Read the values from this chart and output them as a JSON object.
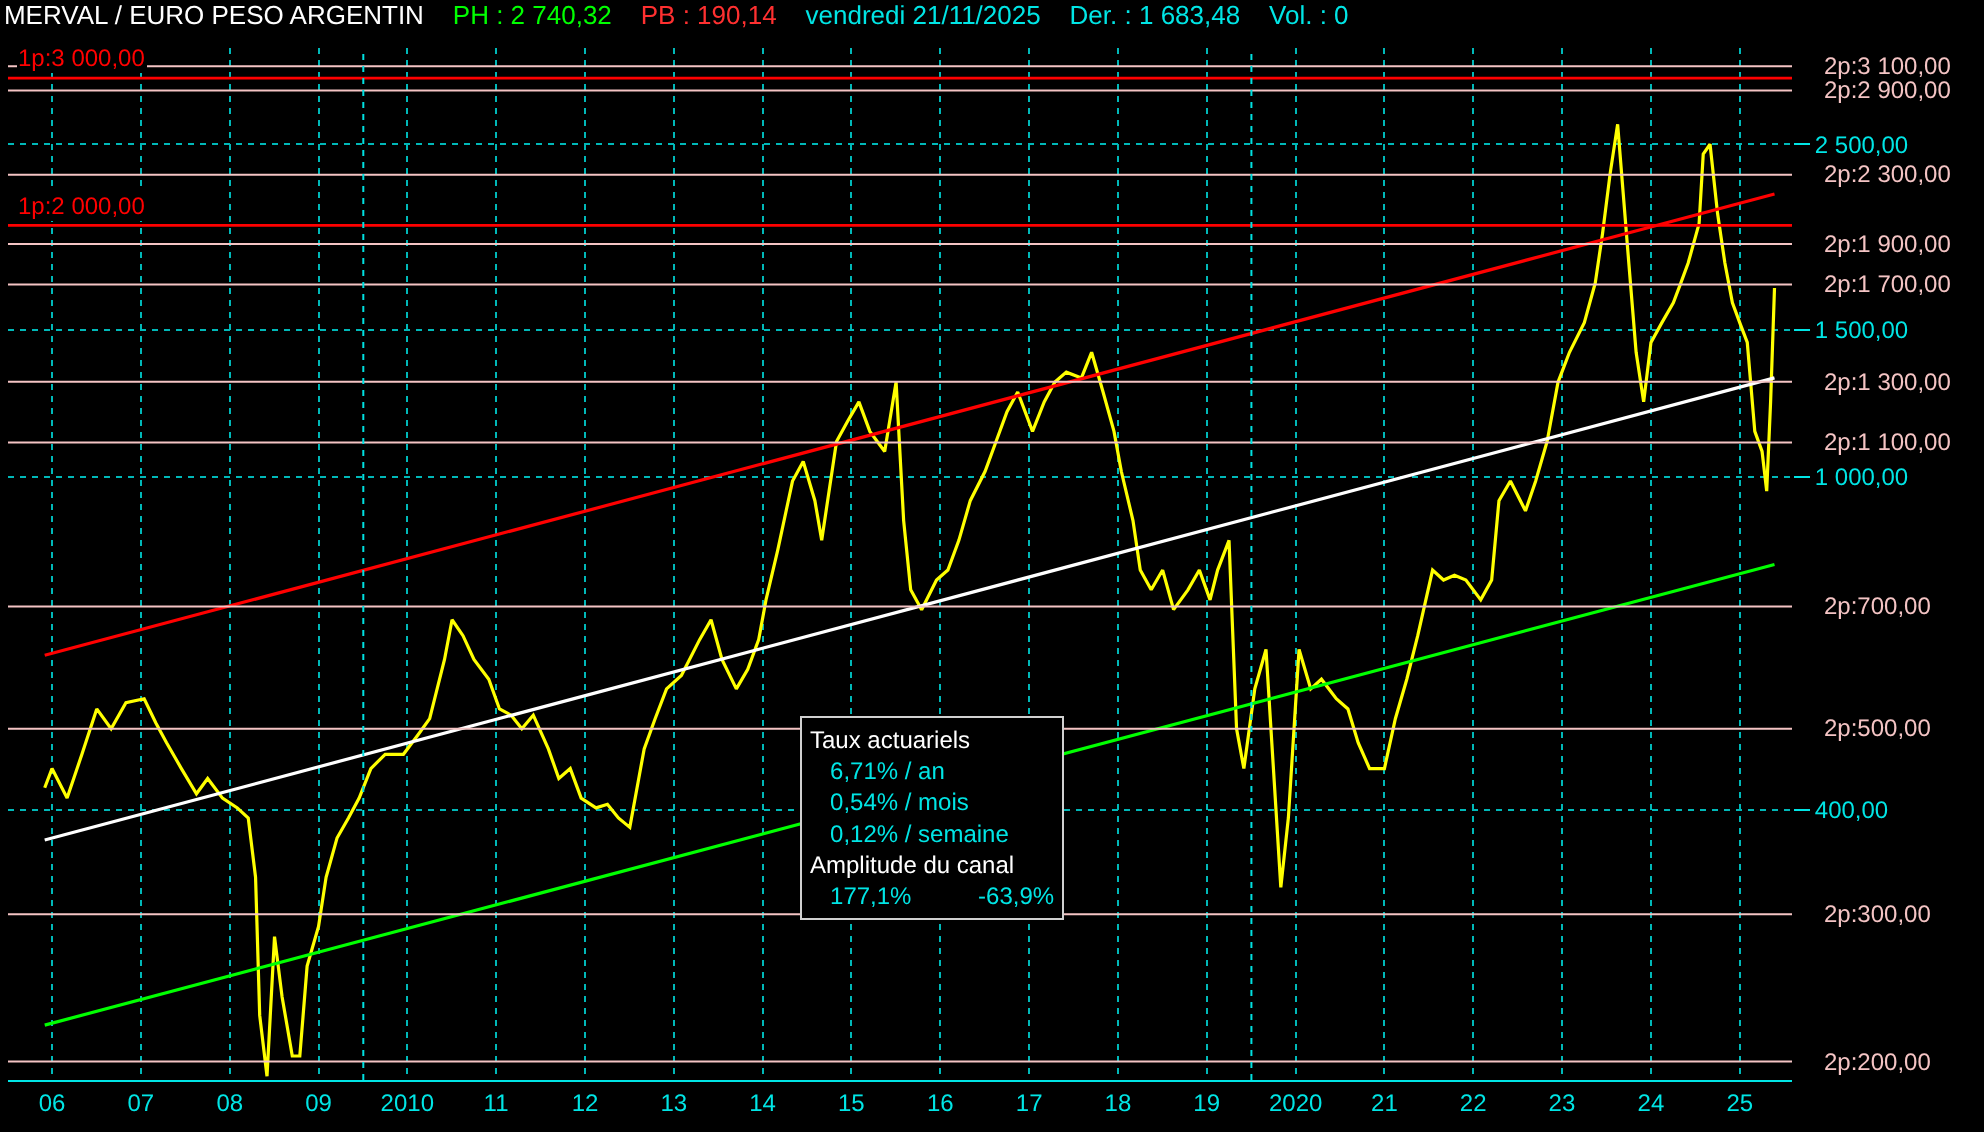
{
  "chart_data": {
    "type": "line",
    "title": "MERVAL / EURO PESO ARGENTIN",
    "annotations": [
      "PH : 2 740,32",
      "PB : 190,14",
      "vendredi 21/11/2025",
      "Der. : 1 683,48",
      "Vol. : 0",
      "Taux actuariels",
      "6,71% / an",
      "0,54% / mois",
      "0,12% / semaine",
      "Amplitude du canal",
      "177,1%",
      "-63,9%"
    ],
    "log": "y",
    "grid": true,
    "marker": "none",
    "xlim": [
      "2006-01-01",
      "2026-02-01"
    ],
    "xticks": [
      {
        "value": "2006-07-01",
        "label": "06"
      },
      {
        "value": "2007-07-01",
        "label": "07"
      },
      {
        "value": "2008-07-01",
        "label": "08"
      },
      {
        "value": "2009-07-01",
        "label": "09"
      },
      {
        "value": "2010-07-01",
        "label": "2010"
      },
      {
        "value": "2011-07-01",
        "label": "11"
      },
      {
        "value": "2012-07-01",
        "label": "12"
      },
      {
        "value": "2013-07-01",
        "label": "13"
      },
      {
        "value": "2014-07-01",
        "label": "14"
      },
      {
        "value": "2015-07-01",
        "label": "15"
      },
      {
        "value": "2016-07-01",
        "label": "16"
      },
      {
        "value": "2017-07-01",
        "label": "17"
      },
      {
        "value": "2018-07-01",
        "label": "18"
      },
      {
        "value": "2019-07-01",
        "label": "19"
      },
      {
        "value": "2020-07-01",
        "label": "2020"
      },
      {
        "value": "2021-07-01",
        "label": "21"
      },
      {
        "value": "2022-07-01",
        "label": "22"
      },
      {
        "value": "2023-07-01",
        "label": "23"
      },
      {
        "value": "2024-07-01",
        "label": "24"
      },
      {
        "value": "2025-07-01",
        "label": "25"
      }
    ],
    "ylim": [
      190,
      3260
    ],
    "yticks": [
      {
        "value": 400,
        "label": "400,00"
      },
      {
        "value": 1000,
        "label": "1 000,00"
      },
      {
        "value": 1500,
        "label": "1 500,00"
      },
      {
        "value": 2500,
        "label": "2 500,00"
      }
    ],
    "ref_lines": [
      {
        "axis": "y",
        "value": 200,
        "label": "2p:200,00",
        "color": "#f4c4c4"
      },
      {
        "axis": "y",
        "value": 300,
        "label": "2p:300,00",
        "color": "#f4c4c4"
      },
      {
        "axis": "y",
        "value": 500,
        "label": "2p:500,00",
        "color": "#f4c4c4"
      },
      {
        "axis": "y",
        "value": 700,
        "label": "2p:700,00",
        "color": "#f4c4c4"
      },
      {
        "axis": "y",
        "value": 1100,
        "label": "2p:1 100,00",
        "color": "#f4c4c4"
      },
      {
        "axis": "y",
        "value": 1300,
        "label": "2p:1 300,00",
        "color": "#f4c4c4"
      },
      {
        "axis": "y",
        "value": 1700,
        "label": "2p:1 700,00",
        "color": "#f4c4c4"
      },
      {
        "axis": "y",
        "value": 1900,
        "label": "2p:1 900,00",
        "color": "#f4c4c4"
      },
      {
        "axis": "y",
        "value": 2300,
        "label": "2p:2 300,00",
        "color": "#f4c4c4"
      },
      {
        "axis": "y",
        "value": 2900,
        "label": "2p:2 900,00",
        "color": "#f4c4c4"
      },
      {
        "axis": "y",
        "value": 3100,
        "label": "2p:3 100,00",
        "color": "#f4c4c4"
      },
      {
        "axis": "y",
        "value": 2000,
        "label": "1p:2 000,00",
        "color": "#ff0000"
      },
      {
        "axis": "y",
        "value": 3000,
        "label": "1p:3 000,00",
        "color": "#ff0000"
      },
      {
        "axis": "x",
        "value": "2010-01-01",
        "color": "#00e0e0",
        "line_style": "dotted"
      },
      {
        "axis": "x",
        "value": "2020-01-01",
        "color": "#00e0e0",
        "line_style": "dotted"
      }
    ],
    "series": [
      {
        "color": "#ffff00",
        "x": [
          "2006-06-01",
          "2006-07-01",
          "2006-09-01",
          "2006-11-01",
          "2007-01-01",
          "2007-03-01",
          "2007-05-01",
          "2007-07-15",
          "2007-09-01",
          "2007-10-15",
          "2007-12-15",
          "2008-02-15",
          "2008-04-01",
          "2008-06-01",
          "2008-08-01",
          "2008-09-15",
          "2008-10-15",
          "2008-11-01",
          "2008-12-01",
          "2009-01-01",
          "2009-02-01",
          "2009-03-15",
          "2009-04-15",
          "2009-05-15",
          "2009-07-01",
          "2009-08-01",
          "2009-09-15",
          "2009-11-01",
          "2009-12-15",
          "2010-02-01",
          "2010-04-01",
          "2010-06-15",
          "2010-08-15",
          "2010-10-01",
          "2010-12-01",
          "2011-01-01",
          "2011-02-15",
          "2011-04-01",
          "2011-06-01",
          "2011-07-15",
          "2011-09-01",
          "2011-10-15",
          "2011-12-01",
          "2012-02-01",
          "2012-03-15",
          "2012-05-01",
          "2012-06-15",
          "2012-08-15",
          "2012-10-01",
          "2012-11-15",
          "2013-01-01",
          "2013-03-01",
          "2013-04-15",
          "2013-06-01",
          "2013-08-01",
          "2013-10-15",
          "2013-12-01",
          "2014-01-15",
          "2014-03-15",
          "2014-05-01",
          "2014-06-15",
          "2014-07-15",
          "2014-09-01",
          "2014-11-01",
          "2014-12-15",
          "2015-02-01",
          "2015-03-01",
          "2015-05-01",
          "2015-06-15",
          "2015-08-01",
          "2015-09-15",
          "2015-11-15",
          "2016-01-01",
          "2016-02-01",
          "2016-03-01",
          "2016-04-15",
          "2016-06-15",
          "2016-08-01",
          "2016-09-15",
          "2016-11-01",
          "2017-01-01",
          "2017-02-15",
          "2017-04-01",
          "2017-05-15",
          "2017-07-15",
          "2017-09-01",
          "2017-10-15",
          "2017-12-01",
          "2018-02-01",
          "2018-03-15",
          "2018-05-01",
          "2018-06-15",
          "2018-07-15",
          "2018-09-01",
          "2018-10-01",
          "2018-11-15",
          "2019-01-01",
          "2019-02-15",
          "2019-04-15",
          "2019-06-01",
          "2019-07-15",
          "2019-08-15",
          "2019-10-01",
          "2019-11-01",
          "2019-12-01",
          "2020-01-15",
          "2020-03-01",
          "2020-05-01",
          "2020-06-01",
          "2020-07-15",
          "2020-09-01",
          "2020-10-15",
          "2020-12-15",
          "2021-02-01",
          "2021-03-15",
          "2021-05-01",
          "2021-07-01",
          "2021-08-15",
          "2021-10-01",
          "2021-11-15",
          "2022-01-15",
          "2022-03-01",
          "2022-04-15",
          "2022-06-01",
          "2022-08-01",
          "2022-09-15",
          "2022-10-15",
          "2022-12-01",
          "2023-02-01",
          "2023-03-15",
          "2023-05-01",
          "2023-06-15",
          "2023-08-01",
          "2023-10-01",
          "2023-11-15",
          "2023-12-15",
          "2024-01-15",
          "2024-02-15",
          "2024-04-01",
          "2024-05-01",
          "2024-06-01",
          "2024-07-01",
          "2024-08-15",
          "2024-10-01",
          "2024-11-01",
          "2024-12-01",
          "2025-01-15",
          "2025-02-01",
          "2025-03-01",
          "2025-04-01",
          "2025-05-01",
          "2025-06-01",
          "2025-07-01",
          "2025-08-01",
          "2025-09-01",
          "2025-10-01",
          "2025-10-20",
          "2025-11-05",
          "2025-11-21"
        ],
        "values": [
          425,
          448,
          413,
          466,
          528,
          500,
          537,
          543,
          508,
          481,
          448,
          418,
          436,
          413,
          402,
          391,
          332,
          227,
          192,
          282,
          239,
          203,
          203,
          260,
          290,
          332,
          370,
          391,
          413,
          448,
          466,
          466,
          492,
          514,
          605,
          675,
          646,
          605,
          573,
          528,
          519,
          500,
          519,
          473,
          436,
          448,
          413,
          402,
          406,
          391,
          381,
          473,
          514,
          558,
          579,
          639,
          675,
          605,
          558,
          589,
          639,
          713,
          817,
          989,
          1044,
          937,
          840,
          1103,
          1165,
          1230,
          1134,
          1073,
          1299,
          887,
          733,
          694,
          753,
          774,
          840,
          937,
          1016,
          1103,
          1197,
          1264,
          1134,
          1230,
          1299,
          1335,
          1314,
          1410,
          1264,
          1134,
          1016,
          887,
          774,
          733,
          774,
          694,
          733,
          774,
          713,
          774,
          840,
          500,
          448,
          558,
          622,
          323,
          391,
          622,
          558,
          573,
          543,
          528,
          481,
          448,
          448,
          514,
          573,
          646,
          774,
          753,
          763,
          753,
          713,
          753,
          937,
          989,
          911,
          989,
          1103,
          1299,
          1410,
          1530,
          1707,
          1956,
          2305,
          2642,
          1803,
          1410,
          1230,
          1449,
          1530,
          1616,
          1707,
          1803,
          2010,
          2434,
          2501,
          2066,
          1803,
          1616,
          1530,
          1449,
          1134,
          1073,
          962,
          1230,
          1683
        ]
      },
      {
        "color": "#ff0000",
        "x": [
          "2006-06-01",
          "2025-11-21"
        ],
        "values": [
          612,
          2181
        ]
      },
      {
        "color": "#ffffff",
        "x": [
          "2006-06-01",
          "2025-11-21"
        ],
        "values": [
          368,
          1314
        ]
      },
      {
        "color": "#00ff00",
        "x": [
          "2006-06-01",
          "2025-11-21"
        ],
        "values": [
          221,
          786
        ]
      }
    ]
  }
}
